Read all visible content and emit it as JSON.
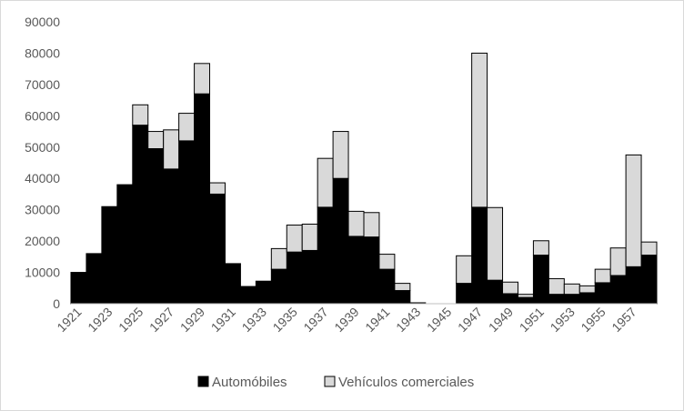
{
  "chart_data": {
    "type": "bar",
    "stacked": true,
    "categories": [
      "1921",
      "1922",
      "1923",
      "1924",
      "1925",
      "1926",
      "1927",
      "1928",
      "1929",
      "1930",
      "1931",
      "1932",
      "1933",
      "1934",
      "1935",
      "1936",
      "1937",
      "1938",
      "1939",
      "1940",
      "1941",
      "1942",
      "1943",
      "1944",
      "1945",
      "1946",
      "1947",
      "1948",
      "1949",
      "1950",
      "1951",
      "1952",
      "1953",
      "1954",
      "1955",
      "1956",
      "1957",
      "1958"
    ],
    "x_tick_labels": [
      "1921",
      "1923",
      "1925",
      "1927",
      "1929",
      "1931",
      "1933",
      "1935",
      "1937",
      "1939",
      "1941",
      "1943",
      "1945",
      "1947",
      "1949",
      "1951",
      "1953",
      "1955",
      "1957"
    ],
    "series": [
      {
        "name": "Automóbiles",
        "color": "#000000",
        "values": [
          10000,
          16000,
          31000,
          38000,
          57000,
          49500,
          43000,
          52000,
          67000,
          35000,
          12800,
          5500,
          7200,
          11000,
          16500,
          17000,
          30800,
          40000,
          21500,
          21300,
          11000,
          4200,
          300,
          0,
          0,
          6500,
          30800,
          7500,
          3200,
          2000,
          15500,
          3000,
          3000,
          3500,
          6700,
          9000,
          11800,
          15500
        ]
      },
      {
        "name": "Vehículos comerciales",
        "color": "#d9d9d9",
        "values": [
          0,
          0,
          0,
          0,
          6500,
          5500,
          12500,
          8800,
          9700,
          3600,
          0,
          0,
          0,
          6600,
          8600,
          8400,
          15600,
          15000,
          8000,
          7800,
          4800,
          2300,
          0,
          0,
          0,
          8800,
          49200,
          23200,
          3700,
          1000,
          4600,
          5000,
          3300,
          2200,
          4300,
          8800,
          35700,
          4200
        ]
      }
    ],
    "ylim": [
      0,
      90000
    ],
    "yticks": [
      0,
      10000,
      20000,
      30000,
      40000,
      50000,
      60000,
      70000,
      80000,
      90000
    ],
    "legend_position": "bottom",
    "grid": false
  }
}
